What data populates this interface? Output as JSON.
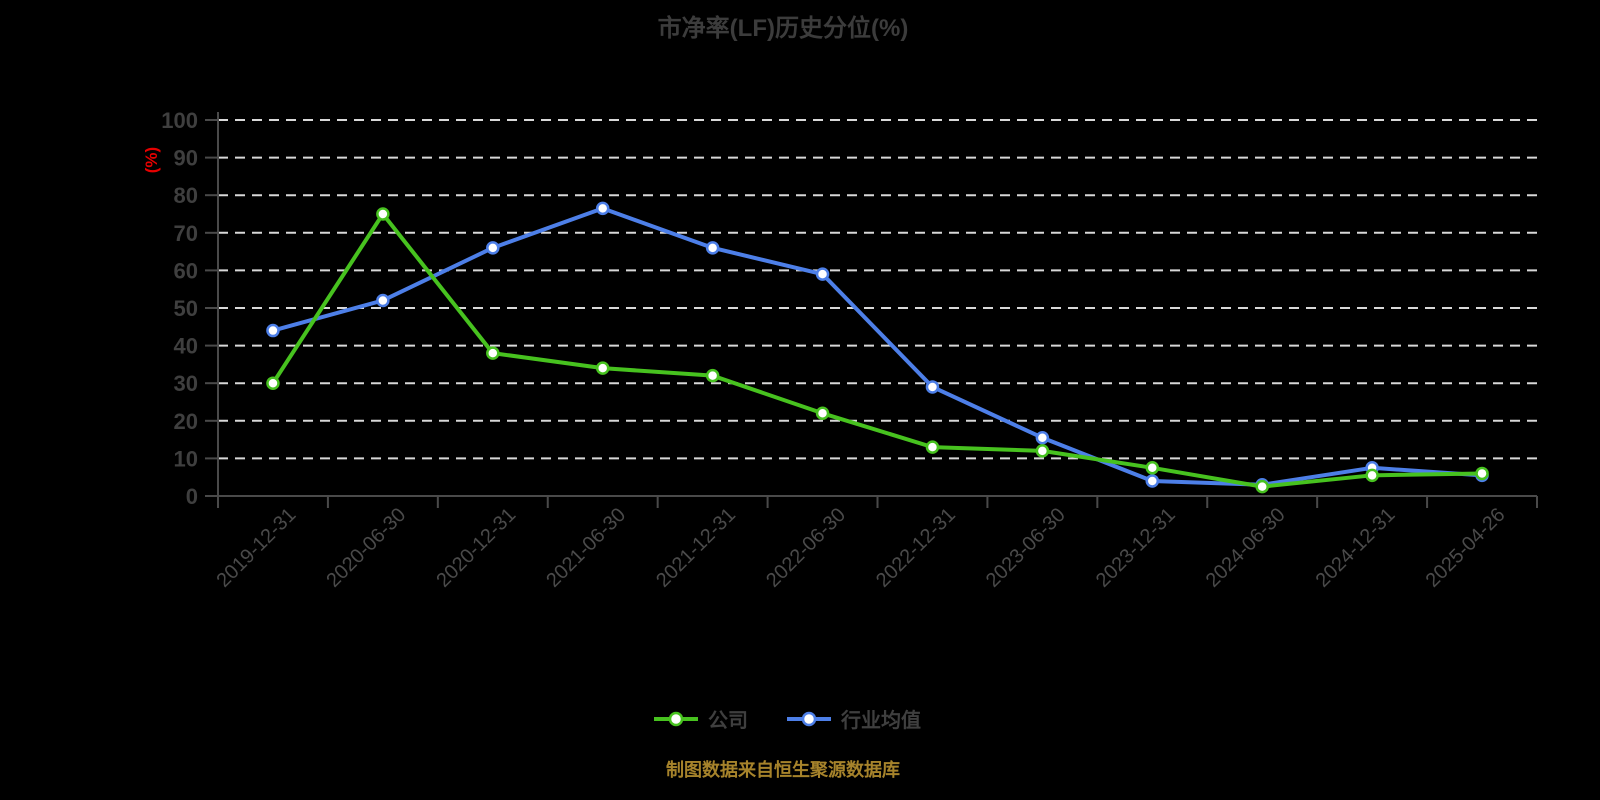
{
  "title": "市净率(LF)历史分位(%)",
  "footer_note": "制图数据来自恒生聚源数据库",
  "style": {
    "background": "#000000",
    "title_color": "#3c3c3c",
    "axis_color": "#4a4a4a",
    "grid_color": "#d8d8d8",
    "y_tick_label_color": "#3f3f3f",
    "x_tick_label_color": "#4a4a4a",
    "y_unit_label_color": "#e60000",
    "legend_text_color": "#3f3f3f",
    "footer_color": "#a6832b",
    "marker_fill": "#ffffff"
  },
  "chart_data": {
    "type": "line",
    "title": "市净率(LF)历史分位(%)",
    "ylabel": "(%)",
    "xlabel": "",
    "ylim": [
      0,
      100
    ],
    "y_tick_step": 10,
    "grid": true,
    "grid_style": "dashed",
    "legend_position": "bottom",
    "categories": [
      "2019-12-31",
      "2020-06-30",
      "2020-12-31",
      "2021-06-30",
      "2021-12-31",
      "2022-06-30",
      "2022-12-31",
      "2023-06-30",
      "2023-12-31",
      "2024-06-30",
      "2024-12-31",
      "2025-04-26"
    ],
    "series": [
      {
        "name": "公司",
        "color": "#47c21f",
        "values": [
          30,
          75,
          38,
          34,
          32,
          22,
          13,
          12,
          7.5,
          2.5,
          5.5,
          6
        ]
      },
      {
        "name": "行业均值",
        "color": "#4d7fe8",
        "values": [
          44,
          52,
          66,
          76.5,
          66,
          59,
          29,
          15.5,
          4,
          3,
          7.5,
          5.5
        ]
      }
    ]
  }
}
